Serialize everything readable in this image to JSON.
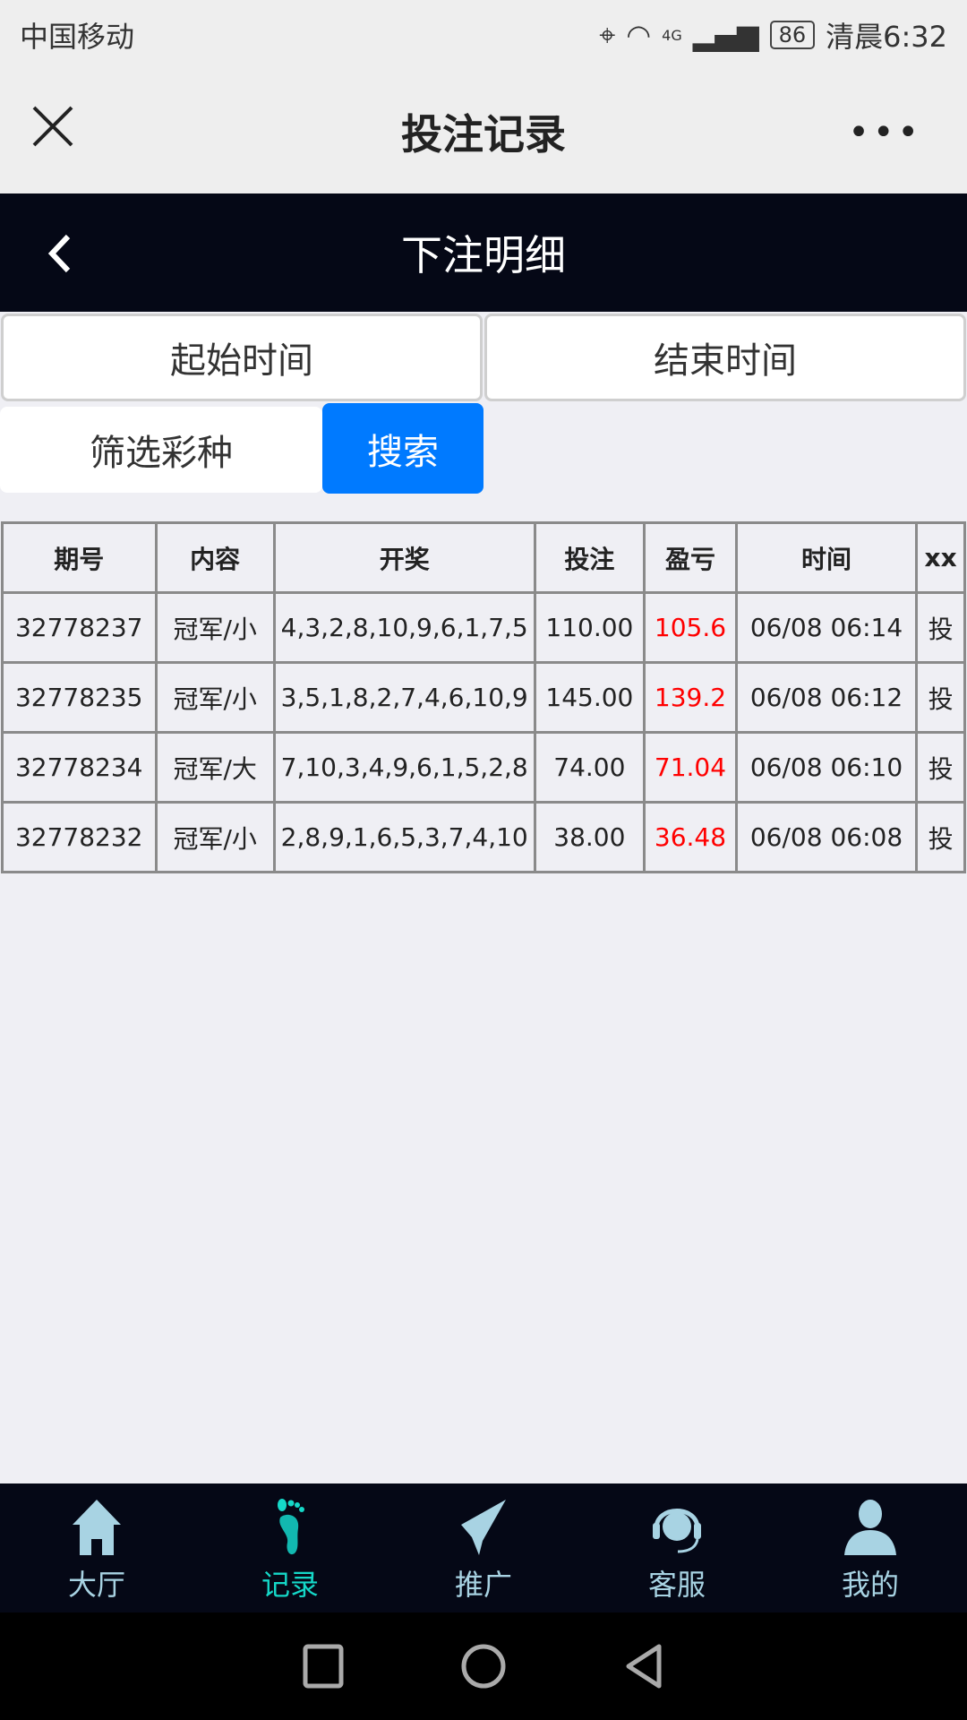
{
  "status_bar": {
    "carrier": "中国移动",
    "network": "4G",
    "battery": "86",
    "time": "清晨6:32"
  },
  "app_bar": {
    "title": "投注记录",
    "close_icon": "close-icon",
    "more_icon": "more-icon"
  },
  "header": {
    "title": "下注明细",
    "back_icon": "chevron-left-icon"
  },
  "filters": {
    "start_time": "起始时间",
    "end_time": "结束时间",
    "lottery_filter": "筛选彩种",
    "search": "搜索"
  },
  "colors": {
    "header_bg": "#050816",
    "search_button": "#007aff",
    "loss_value": "#ff0000",
    "active_tab": "#15d8c8",
    "tab": "#a8d3e3"
  },
  "table": {
    "headers": [
      "期号",
      "内容",
      "开奖",
      "投注",
      "盈亏",
      "时间",
      "xx"
    ],
    "rows": [
      [
        "32778237",
        "冠军/小",
        "4,3,2,8,10,9,6,1,7,5",
        "110.00",
        "105.6",
        "06/08 06:14",
        "投"
      ],
      [
        "32778235",
        "冠军/小",
        "3,5,1,8,2,7,4,6,10,9",
        "145.00",
        "139.2",
        "06/08 06:12",
        "投"
      ],
      [
        "32778234",
        "冠军/大",
        "7,10,3,4,9,6,1,5,2,8",
        "74.00",
        "71.04",
        "06/08 06:10",
        "投"
      ],
      [
        "32778232",
        "冠军/小",
        "2,8,9,1,6,5,3,7,4,10",
        "38.00",
        "36.48",
        "06/08 06:08",
        "投"
      ]
    ]
  },
  "tabbar": {
    "items": [
      {
        "label": "大厅",
        "icon": "home-icon"
      },
      {
        "label": "记录",
        "icon": "footprint-icon",
        "active": true
      },
      {
        "label": "推广",
        "icon": "paper-plane-icon"
      },
      {
        "label": "客服",
        "icon": "headset-icon"
      },
      {
        "label": "我的",
        "icon": "user-icon"
      }
    ]
  }
}
